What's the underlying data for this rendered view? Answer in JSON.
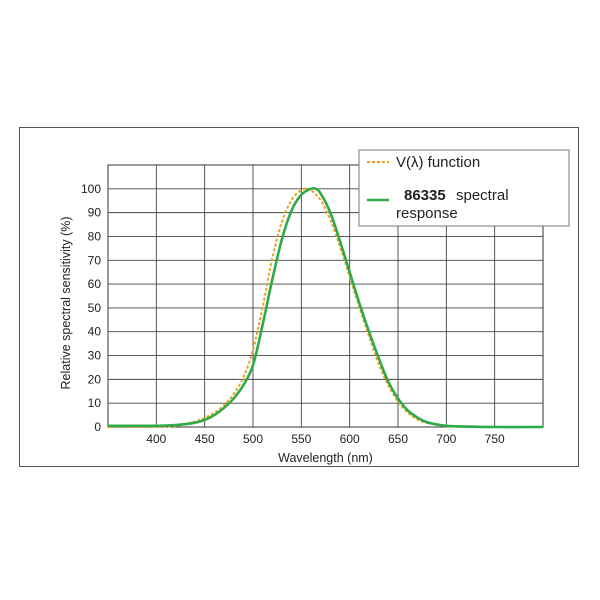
{
  "chart_data": {
    "type": "line",
    "xlabel": "Wavelength (nm)",
    "ylabel": "Relative spectral sensitivity (%)",
    "xlim": [
      350,
      800
    ],
    "ylim": [
      0,
      110
    ],
    "xticks": [
      400,
      450,
      500,
      550,
      600,
      650,
      700,
      750
    ],
    "yticks": [
      0,
      10,
      20,
      30,
      40,
      50,
      60,
      70,
      80,
      90,
      100
    ],
    "grid": true,
    "legend": {
      "position": "top-right",
      "entries": [
        {
          "label": "V(λ) function",
          "style": "dotted",
          "color": "#f0a020"
        },
        {
          "label_bold": "86335",
          "label_rest": "spectral",
          "label_line2": "response",
          "style": "solid",
          "color": "#2eaa4a"
        }
      ]
    },
    "series": [
      {
        "name": "V(λ) function",
        "color": "#f0a020",
        "x": [
          350,
          380,
          400,
          420,
          440,
          450,
          460,
          470,
          480,
          490,
          500,
          510,
          520,
          530,
          540,
          550,
          555,
          560,
          570,
          580,
          590,
          600,
          610,
          620,
          630,
          640,
          650,
          660,
          670,
          680,
          700,
          720,
          750,
          800
        ],
        "y": [
          0,
          0,
          0.1,
          0.4,
          2.3,
          3.8,
          6,
          9.1,
          13.9,
          20.8,
          32.3,
          50.3,
          71,
          86.2,
          95.4,
          99.5,
          100,
          99.5,
          95.2,
          87,
          75.7,
          63.1,
          50.3,
          38.1,
          26.5,
          17.5,
          10.7,
          6.1,
          3.2,
          1.7,
          0.4,
          0.1,
          0,
          0
        ]
      },
      {
        "name": "86335 spectral response",
        "color": "#2eaa4a",
        "x": [
          350,
          380,
          400,
          420,
          440,
          450,
          460,
          470,
          480,
          490,
          500,
          510,
          520,
          530,
          540,
          550,
          560,
          565,
          570,
          580,
          590,
          600,
          610,
          620,
          630,
          640,
          650,
          660,
          670,
          680,
          700,
          720,
          750,
          800
        ],
        "y": [
          0.5,
          0.5,
          0.5,
          0.8,
          1.8,
          3,
          5,
          8,
          12,
          17.5,
          26,
          43,
          62,
          79,
          91,
          97.5,
          100,
          100,
          98,
          90,
          78,
          65,
          52,
          40,
          29,
          19,
          12,
          7,
          4,
          2,
          0.5,
          0.2,
          0,
          0
        ]
      }
    ]
  }
}
